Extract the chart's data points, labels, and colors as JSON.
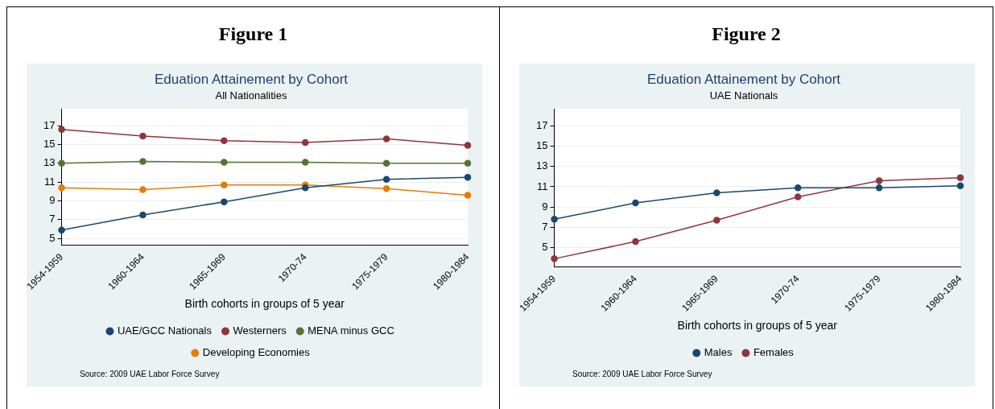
{
  "chart_data": [
    {
      "type": "line",
      "title": "Figure 1",
      "subtitle": "Eduation Attainement by Cohort",
      "annotations": [
        "All Nationalities",
        "Source: 2009 UAE Labor Force Survey"
      ],
      "xlabel": "Birth cohorts in groups of 5 year",
      "categories": [
        "1954-1959",
        "1960-1964",
        "1965-1969",
        "1970-74",
        "1975-1979",
        "1980-1984"
      ],
      "series": [
        {
          "name": "UAE/GCC Nationals",
          "color": "#1a476f",
          "values": [
            5.9,
            7.5,
            8.9,
            10.4,
            11.3,
            11.5
          ]
        },
        {
          "name": "Westerners",
          "color": "#90353b",
          "values": [
            16.6,
            15.9,
            15.4,
            15.2,
            15.6,
            14.9
          ]
        },
        {
          "name": "MENA minus GCC",
          "color": "#55752f",
          "values": [
            13.0,
            13.2,
            13.1,
            13.1,
            13.0,
            13.0
          ]
        },
        {
          "name": "Developing Economies",
          "color": "#e37e00",
          "values": [
            10.4,
            10.2,
            10.7,
            10.7,
            10.3,
            9.6
          ]
        }
      ],
      "ylim": [
        4.3,
        18.8
      ],
      "yticks": [
        5,
        7,
        9,
        11,
        13,
        15,
        17
      ],
      "grid": "y",
      "legend": "bottom",
      "marker": "circle"
    },
    {
      "type": "line",
      "title": "Figure 2",
      "subtitle": "Eduation Attainement by Cohort",
      "annotations": [
        "UAE Nationals",
        "Source: 2009 UAE Labor Force Survey"
      ],
      "xlabel": "Birth cohorts in groups of 5 year",
      "categories": [
        "1954-1959",
        "1960-1964",
        "1965-1969",
        "1970-74",
        "1975-1979",
        "1980-1984"
      ],
      "series": [
        {
          "name": "Males",
          "color": "#1a476f",
          "values": [
            7.8,
            9.4,
            10.4,
            10.9,
            10.9,
            11.1
          ]
        },
        {
          "name": "Females",
          "color": "#90353b",
          "values": [
            3.9,
            5.6,
            7.7,
            10.0,
            11.6,
            11.9
          ]
        }
      ],
      "ylim": [
        3.1,
        18.7
      ],
      "yticks": [
        5,
        7,
        9,
        11,
        13,
        15,
        17
      ],
      "grid": "y",
      "legend": "bottom",
      "marker": "circle"
    }
  ]
}
